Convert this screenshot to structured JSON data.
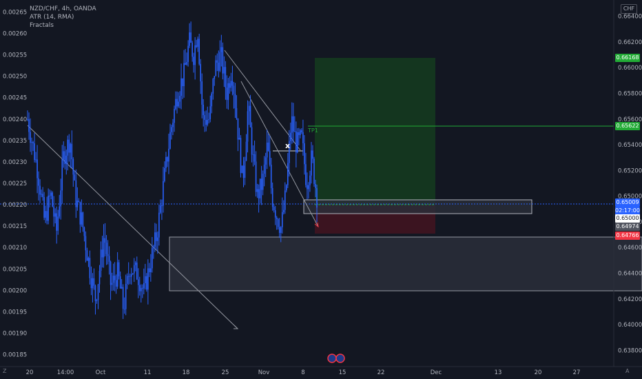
{
  "header": {
    "symbol_line": "NZD/CHF, 4h, OANDA",
    "indicator_1": "ATR (14, RMA)",
    "indicator_2": "Fractals"
  },
  "currency_button": "CHF",
  "corner_left": "Z",
  "corner_right": "A",
  "chart_data": {
    "type": "candlestick",
    "symbol": "NZD/CHF",
    "timeframe": "4h",
    "source": "OANDA",
    "right_axis": {
      "range": [
        0.637,
        0.665
      ],
      "ticks": [
        "0.66400",
        "0.66200",
        "0.66000",
        "0.65800",
        "0.65600",
        "0.65400",
        "0.65200",
        "0.65000",
        "0.64800",
        "0.64600",
        "0.64400",
        "0.64200",
        "0.64000",
        "0.63800"
      ]
    },
    "left_axis": {
      "range": [
        0.00183,
        0.00267
      ],
      "ticks": [
        "0.00265",
        "0.00260",
        "0.00255",
        "0.00250",
        "0.00245",
        "0.00240",
        "0.00235",
        "0.00230",
        "0.00225",
        "0.00220",
        "0.00215",
        "0.00210",
        "0.00205",
        "0.00200",
        "0.00195",
        "0.00190",
        "0.00185"
      ]
    },
    "x_ticks": [
      "20",
      "14:00",
      "Oct",
      "11",
      "18",
      "25",
      "Nov",
      "8",
      "15",
      "22",
      "Dec",
      "13",
      "20",
      "27"
    ],
    "price_series": [
      {
        "t": 0.0,
        "p": 0.656
      },
      {
        "t": 0.03,
        "p": 0.652
      },
      {
        "t": 0.05,
        "p": 0.648
      },
      {
        "t": 0.068,
        "p": 0.6502
      },
      {
        "t": 0.085,
        "p": 0.6472
      },
      {
        "t": 0.105,
        "p": 0.653
      },
      {
        "t": 0.125,
        "p": 0.6545
      },
      {
        "t": 0.14,
        "p": 0.65
      },
      {
        "t": 0.16,
        "p": 0.648
      },
      {
        "t": 0.185,
        "p": 0.644
      },
      {
        "t": 0.2,
        "p": 0.642
      },
      {
        "t": 0.225,
        "p": 0.647
      },
      {
        "t": 0.245,
        "p": 0.643
      },
      {
        "t": 0.265,
        "p": 0.644
      },
      {
        "t": 0.282,
        "p": 0.6412
      },
      {
        "t": 0.3,
        "p": 0.6445
      },
      {
        "t": 0.322,
        "p": 0.644
      },
      {
        "t": 0.342,
        "p": 0.6425
      },
      {
        "t": 0.362,
        "p": 0.645
      },
      {
        "t": 0.38,
        "p": 0.647
      },
      {
        "t": 0.4,
        "p": 0.651
      },
      {
        "t": 0.42,
        "p": 0.655
      },
      {
        "t": 0.44,
        "p": 0.658
      },
      {
        "t": 0.46,
        "p": 0.6595
      },
      {
        "t": 0.475,
        "p": 0.662
      },
      {
        "t": 0.488,
        "p": 0.661
      },
      {
        "t": 0.5,
        "p": 0.663
      },
      {
        "t": 0.515,
        "p": 0.656
      },
      {
        "t": 0.535,
        "p": 0.656
      },
      {
        "t": 0.55,
        "p": 0.66
      },
      {
        "t": 0.568,
        "p": 0.661
      },
      {
        "t": 0.585,
        "p": 0.658
      },
      {
        "t": 0.6,
        "p": 0.66
      },
      {
        "t": 0.615,
        "p": 0.656
      },
      {
        "t": 0.632,
        "p": 0.651
      },
      {
        "t": 0.648,
        "p": 0.657
      },
      {
        "t": 0.662,
        "p": 0.653
      },
      {
        "t": 0.675,
        "p": 0.65
      },
      {
        "t": 0.69,
        "p": 0.651
      },
      {
        "t": 0.705,
        "p": 0.654
      },
      {
        "t": 0.718,
        "p": 0.65
      },
      {
        "t": 0.732,
        "p": 0.6485
      },
      {
        "t": 0.745,
        "p": 0.6475
      },
      {
        "t": 0.758,
        "p": 0.65
      },
      {
        "t": 0.775,
        "p": 0.656
      },
      {
        "t": 0.79,
        "p": 0.654
      },
      {
        "t": 0.805,
        "p": 0.6545
      },
      {
        "t": 0.82,
        "p": 0.651
      },
      {
        "t": 0.835,
        "p": 0.653
      },
      {
        "t": 0.85,
        "p": 0.65
      }
    ],
    "annotations": {
      "target_label": "TP1",
      "marker_label": "x",
      "price_labels": [
        {
          "text": "0.66168",
          "color": "#22ab36"
        },
        {
          "text": "0.65622",
          "color": "#22ab36"
        },
        {
          "text": "0.65009",
          "color": "#2962ff"
        },
        {
          "text": "02:17:00",
          "color": "#2962ff"
        },
        {
          "text": "0.65000",
          "color": "#ffffff"
        },
        {
          "text": "0.64974",
          "color": "#50535e"
        },
        {
          "text": "0.64766",
          "color": "#f23645"
        }
      ]
    }
  },
  "colors": {
    "background": "#131722",
    "candle": "#2962ff",
    "profit_zone": "#14361f",
    "loss_zone": "#3b1420",
    "box_fill": "#2a2e39",
    "box_stroke": "#9598a1"
  }
}
